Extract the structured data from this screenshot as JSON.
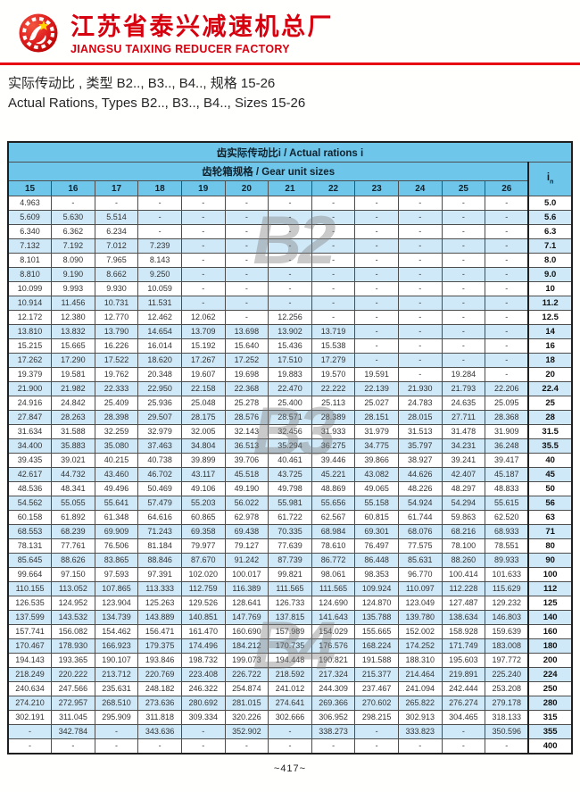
{
  "header": {
    "logo_icon": "gear-star-emblem",
    "company_cn": "江苏省泰兴减速机总厂",
    "company_en": "JIANGSU TAIXING REDUCER FACTORY"
  },
  "subtitle": {
    "line_cn": "实际传动比 , 类型 B2.., B3.., B4.., 规格 15-26",
    "line_en": "Actual Rations, Types B2.., B3.., B4.., Sizes 15-26"
  },
  "table": {
    "title": "齿实际传动比i / Actual rations i",
    "subtitle": "齿轮箱规格 / Gear unit sizes",
    "in_label": "i",
    "in_sub": "n",
    "sizes": [
      "15",
      "16",
      "17",
      "18",
      "19",
      "20",
      "21",
      "22",
      "23",
      "24",
      "25",
      "26"
    ],
    "rows": [
      {
        "values": [
          "4.963",
          "-",
          "-",
          "-",
          "-",
          "-",
          "-",
          "-",
          "-",
          "-",
          "-",
          "-"
        ],
        "i": "5.0"
      },
      {
        "values": [
          "5.609",
          "5.630",
          "5.514",
          "-",
          "-",
          "-",
          "-",
          "-",
          "-",
          "-",
          "-",
          "-"
        ],
        "i": "5.6"
      },
      {
        "values": [
          "6.340",
          "6.362",
          "6.234",
          "-",
          "-",
          "-",
          "-",
          "-",
          "-",
          "-",
          "-",
          "-"
        ],
        "i": "6.3"
      },
      {
        "values": [
          "7.132",
          "7.192",
          "7.012",
          "7.239",
          "-",
          "-",
          "-",
          "-",
          "-",
          "-",
          "-",
          "-"
        ],
        "i": "7.1"
      },
      {
        "values": [
          "8.101",
          "8.090",
          "7.965",
          "8.143",
          "-",
          "-",
          "-",
          "-",
          "-",
          "-",
          "-",
          "-"
        ],
        "i": "8.0"
      },
      {
        "values": [
          "8.810",
          "9.190",
          "8.662",
          "9.250",
          "-",
          "-",
          "-",
          "-",
          "-",
          "-",
          "-",
          "-"
        ],
        "i": "9.0"
      },
      {
        "values": [
          "10.099",
          "9.993",
          "9.930",
          "10.059",
          "-",
          "-",
          "-",
          "-",
          "-",
          "-",
          "-",
          "-"
        ],
        "i": "10"
      },
      {
        "values": [
          "10.914",
          "11.456",
          "10.731",
          "11.531",
          "-",
          "-",
          "-",
          "-",
          "-",
          "-",
          "-",
          "-"
        ],
        "i": "11.2"
      },
      {
        "values": [
          "12.172",
          "12.380",
          "12.770",
          "12.462",
          "12.062",
          "-",
          "12.256",
          "-",
          "-",
          "-",
          "-",
          "-"
        ],
        "i": "12.5"
      },
      {
        "values": [
          "13.810",
          "13.832",
          "13.790",
          "14.654",
          "13.709",
          "13.698",
          "13.902",
          "13.719",
          "-",
          "-",
          "-",
          "-"
        ],
        "i": "14"
      },
      {
        "values": [
          "15.215",
          "15.665",
          "16.226",
          "16.014",
          "15.192",
          "15.640",
          "15.436",
          "15.538",
          "-",
          "-",
          "-",
          "-"
        ],
        "i": "16"
      },
      {
        "values": [
          "17.262",
          "17.290",
          "17.522",
          "18.620",
          "17.267",
          "17.252",
          "17.510",
          "17.279",
          "-",
          "-",
          "-",
          "-"
        ],
        "i": "18"
      },
      {
        "values": [
          "19.379",
          "19.581",
          "19.762",
          "20.348",
          "19.607",
          "19.698",
          "19.883",
          "19.570",
          "19.591",
          "-",
          "19.284",
          "-"
        ],
        "i": "20"
      },
      {
        "values": [
          "21.900",
          "21.982",
          "22.333",
          "22.950",
          "22.158",
          "22.368",
          "22.470",
          "22.222",
          "22.139",
          "21.930",
          "21.793",
          "22.206"
        ],
        "i": "22.4"
      },
      {
        "values": [
          "24.916",
          "24.842",
          "25.409",
          "25.936",
          "25.048",
          "25.278",
          "25.400",
          "25.113",
          "25.027",
          "24.783",
          "24.635",
          "25.095"
        ],
        "i": "25"
      },
      {
        "values": [
          "27.847",
          "28.263",
          "28.398",
          "29.507",
          "28.175",
          "28.576",
          "28.571",
          "28.389",
          "28.151",
          "28.015",
          "27.711",
          "28.368"
        ],
        "i": "28"
      },
      {
        "values": [
          "31.634",
          "31.588",
          "32.259",
          "32.979",
          "32.005",
          "32.143",
          "32.456",
          "31.933",
          "31.979",
          "31.513",
          "31.478",
          "31.909"
        ],
        "i": "31.5"
      },
      {
        "values": [
          "34.400",
          "35.883",
          "35.080",
          "37.463",
          "34.804",
          "36.513",
          "35.294",
          "36.275",
          "34.775",
          "35.797",
          "34.231",
          "36.248"
        ],
        "i": "35.5"
      },
      {
        "values": [
          "39.435",
          "39.021",
          "40.215",
          "40.738",
          "39.899",
          "39.706",
          "40.461",
          "39.446",
          "39.866",
          "38.927",
          "39.241",
          "39.417"
        ],
        "i": "40"
      },
      {
        "values": [
          "42.617",
          "44.732",
          "43.460",
          "46.702",
          "43.117",
          "45.518",
          "43.725",
          "45.221",
          "43.082",
          "44.626",
          "42.407",
          "45.187"
        ],
        "i": "45"
      },
      {
        "values": [
          "48.536",
          "48.341",
          "49.496",
          "50.469",
          "49.106",
          "49.190",
          "49.798",
          "48.869",
          "49.065",
          "48.226",
          "48.297",
          "48.833"
        ],
        "i": "50"
      },
      {
        "values": [
          "54.562",
          "55.055",
          "55.641",
          "57.479",
          "55.203",
          "56.022",
          "55.981",
          "55.656",
          "55.158",
          "54.924",
          "54.294",
          "55.615"
        ],
        "i": "56"
      },
      {
        "values": [
          "60.158",
          "61.892",
          "61.348",
          "64.616",
          "60.865",
          "62.978",
          "61.722",
          "62.567",
          "60.815",
          "61.744",
          "59.863",
          "62.520"
        ],
        "i": "63"
      },
      {
        "values": [
          "68.553",
          "68.239",
          "69.909",
          "71.243",
          "69.358",
          "69.438",
          "70.335",
          "68.984",
          "69.301",
          "68.076",
          "68.216",
          "68.933"
        ],
        "i": "71"
      },
      {
        "values": [
          "78.131",
          "77.761",
          "76.506",
          "81.184",
          "79.977",
          "79.127",
          "77.639",
          "78.610",
          "76.497",
          "77.575",
          "78.100",
          "78.551"
        ],
        "i": "80"
      },
      {
        "values": [
          "85.645",
          "88.626",
          "83.865",
          "88.846",
          "87.670",
          "91.242",
          "87.739",
          "86.772",
          "86.448",
          "85.631",
          "88.260",
          "89.933"
        ],
        "i": "90"
      },
      {
        "values": [
          "99.664",
          "97.150",
          "97.593",
          "97.391",
          "102.020",
          "100.017",
          "99.821",
          "98.061",
          "98.353",
          "96.770",
          "100.414",
          "101.633"
        ],
        "i": "100"
      },
      {
        "values": [
          "110.155",
          "113.052",
          "107.865",
          "113.333",
          "112.759",
          "116.389",
          "111.565",
          "111.565",
          "109.924",
          "110.097",
          "112.228",
          "115.629"
        ],
        "i": "112"
      },
      {
        "values": [
          "126.535",
          "124.952",
          "123.904",
          "125.263",
          "129.526",
          "128.641",
          "126.733",
          "124.690",
          "124.870",
          "123.049",
          "127.487",
          "129.232"
        ],
        "i": "125"
      },
      {
        "values": [
          "137.599",
          "143.532",
          "134.739",
          "143.889",
          "140.851",
          "147.769",
          "137.815",
          "141.643",
          "135.788",
          "139.780",
          "138.634",
          "146.803"
        ],
        "i": "140"
      },
      {
        "values": [
          "157.741",
          "156.082",
          "154.462",
          "156.471",
          "161.470",
          "160.690",
          "157.989",
          "154.029",
          "155.665",
          "152.002",
          "158.928",
          "159.639"
        ],
        "i": "160"
      },
      {
        "values": [
          "170.467",
          "178.930",
          "166.923",
          "179.375",
          "174.496",
          "184.212",
          "170.735",
          "176.576",
          "168.224",
          "174.252",
          "171.749",
          "183.008"
        ],
        "i": "180"
      },
      {
        "values": [
          "194.143",
          "193.365",
          "190.107",
          "193.846",
          "198.732",
          "199.073",
          "194.448",
          "190.821",
          "191.588",
          "188.310",
          "195.603",
          "197.772"
        ],
        "i": "200"
      },
      {
        "values": [
          "218.249",
          "220.222",
          "213.712",
          "220.769",
          "223.408",
          "226.722",
          "218.592",
          "217.324",
          "215.377",
          "214.464",
          "219.891",
          "225.240"
        ],
        "i": "224"
      },
      {
        "values": [
          "240.634",
          "247.566",
          "235.631",
          "248.182",
          "246.322",
          "254.874",
          "241.012",
          "244.309",
          "237.467",
          "241.094",
          "242.444",
          "253.208"
        ],
        "i": "250"
      },
      {
        "values": [
          "274.210",
          "272.957",
          "268.510",
          "273.636",
          "280.692",
          "281.015",
          "274.641",
          "269.366",
          "270.602",
          "265.822",
          "276.274",
          "279.178"
        ],
        "i": "280"
      },
      {
        "values": [
          "302.191",
          "311.045",
          "295.909",
          "311.818",
          "309.334",
          "320.226",
          "302.666",
          "306.952",
          "298.215",
          "302.913",
          "304.465",
          "318.133"
        ],
        "i": "315"
      },
      {
        "values": [
          "-",
          "342.784",
          "-",
          "343.636",
          "-",
          "352.902",
          "-",
          "338.273",
          "-",
          "333.823",
          "-",
          "350.596"
        ],
        "i": "355"
      },
      {
        "values": [
          "-",
          "-",
          "-",
          "-",
          "-",
          "-",
          "-",
          "-",
          "-",
          "-",
          "-",
          "-"
        ],
        "i": "400"
      }
    ]
  },
  "watermarks": [
    "B2",
    "B3",
    "B4"
  ],
  "footer": {
    "page": "~417~"
  },
  "colors": {
    "accent_red": "#e60012",
    "company_red": "#d7000f",
    "header_blue": "#6ec6ea",
    "stripe_blue": "#cfe9f8",
    "watermark_gray": "#808080",
    "star_yellow": "#ffd400"
  }
}
